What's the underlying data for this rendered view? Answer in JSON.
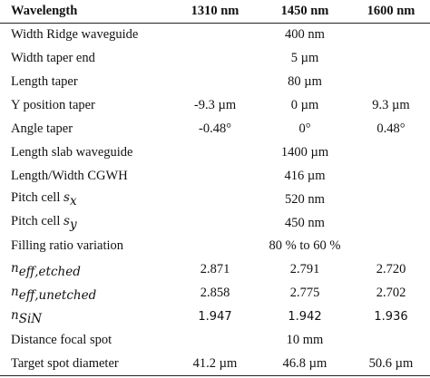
{
  "table": {
    "headers": [
      "Wavelength",
      "1310 nm",
      "1450 nm",
      "1600 nm"
    ],
    "rows": [
      {
        "label": "Width Ridge waveguide",
        "shared": "400 nm"
      },
      {
        "label": "Width taper end",
        "shared": "5 µm"
      },
      {
        "label": "Length  taper",
        "shared": "80 µm"
      },
      {
        "label": "Y position taper",
        "values": [
          "-9.3 µm",
          "0 µm",
          "9.3 µm"
        ]
      },
      {
        "label": "Angle taper",
        "values": [
          "-0.48°",
          "0°",
          "0.48°"
        ]
      },
      {
        "label": "Length slab waveguide",
        "shared": "1400 µm"
      },
      {
        "label": "Length/Width CGWH",
        "shared": "416 µm"
      },
      {
        "label_text": "Pitch cell ",
        "label_math": "s",
        "label_sub": "x",
        "shared": "520 nm"
      },
      {
        "label_text": "Pitch cell ",
        "label_math": "s",
        "label_sub": "y",
        "shared": "450 nm"
      },
      {
        "label": "Filling ratio variation",
        "shared": "80 % to 60 %"
      },
      {
        "label_math": "n",
        "label_sub": "eff,etched",
        "values": [
          "2.871",
          "2.791",
          "2.720"
        ]
      },
      {
        "label_math": "n",
        "label_sub": "eff,unetched",
        "values": [
          "2.858",
          "2.775",
          "2.702"
        ]
      },
      {
        "label_math": "n",
        "label_sub": "SiN",
        "values": [
          "1.947",
          "1.942",
          "1.936"
        ]
      },
      {
        "label": "Distance focal spot",
        "shared": "10 mm"
      },
      {
        "label": "Target spot diameter",
        "values": [
          "41.2 µm",
          "46.8 µm",
          "50.6 µm"
        ]
      }
    ]
  }
}
